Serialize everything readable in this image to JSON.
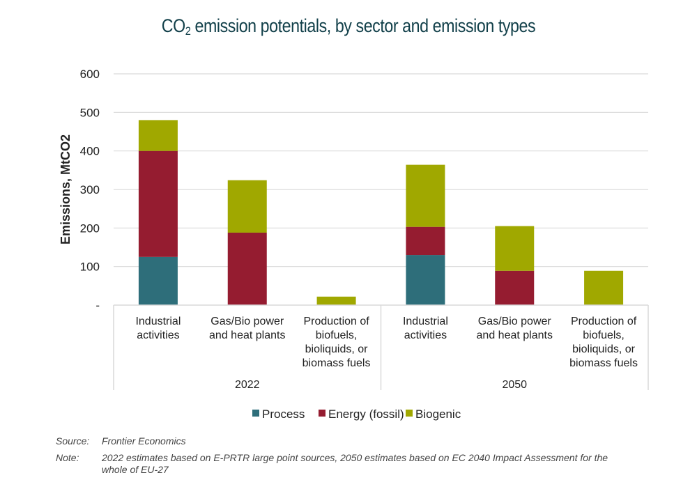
{
  "title_prefix": "CO",
  "title_sub": "2",
  "title_rest": " emission potentials, by sector and emission types",
  "chart_data": {
    "type": "bar",
    "stacked": true,
    "title": "CO2 emission potentials, by sector and emission types",
    "ylabel": "Emissions, MtCO2",
    "xlabel": "",
    "ylim": [
      0,
      600
    ],
    "yticks": [
      0,
      100,
      200,
      300,
      400,
      500,
      600
    ],
    "ytick_labels": [
      "-",
      "100",
      "200",
      "300",
      "400",
      "500",
      "600"
    ],
    "grid": true,
    "groups": [
      {
        "label": "2022",
        "categories": [
          [
            "Industrial",
            "activities"
          ],
          [
            "Gas/Bio power",
            "and heat plants"
          ],
          [
            "Production of",
            "biofuels,",
            "bioliquids, or",
            "biomass fuels"
          ]
        ]
      },
      {
        "label": "2050",
        "categories": [
          [
            "Industrial",
            "activities"
          ],
          [
            "Gas/Bio power",
            "and heat plants"
          ],
          [
            "Production of",
            "biofuels,",
            "bioliquids, or",
            "biomass fuels"
          ]
        ]
      }
    ],
    "categories": [
      "2022 - Industrial activities",
      "2022 - Gas/Bio power and heat plants",
      "2022 - Production of biofuels, bioliquids, or biomass fuels",
      "2050 - Industrial activities",
      "2050 - Gas/Bio power and heat plants",
      "2050 - Production of biofuels, bioliquids, or biomass fuels"
    ],
    "series": [
      {
        "name": "Process",
        "color": "#2e6e7a",
        "values": [
          125,
          0,
          0,
          130,
          0,
          0
        ]
      },
      {
        "name": "Energy (fossil)",
        "color": "#951c30",
        "values": [
          275,
          188,
          0,
          73,
          89,
          0
        ]
      },
      {
        "name": "Biogenic",
        "color": "#a0a800",
        "values": [
          80,
          136,
          22,
          161,
          116,
          89
        ]
      }
    ],
    "legend_position": "bottom"
  },
  "footer": {
    "source_label": "Source:",
    "source_text": "Frontier Economics",
    "note_label": "Note:",
    "note_line1": "2022 estimates based on E-PRTR large point sources, 2050 estimates based on EC 2040 Impact Assessment for the",
    "note_line2": "whole of EU-27"
  }
}
